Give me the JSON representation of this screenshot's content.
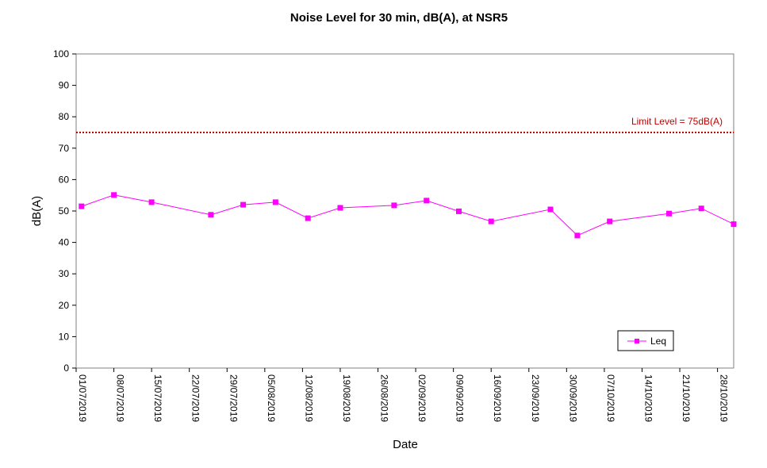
{
  "chart_data": {
    "type": "line",
    "title": "Noise Level for 30 min, dB(A), at NSR5",
    "xlabel": "Date",
    "ylabel": "dB(A)",
    "ylim": [
      0,
      100
    ],
    "yticks": [
      0,
      10,
      20,
      30,
      40,
      50,
      60,
      70,
      80,
      90,
      100
    ],
    "xlim": [
      "2019-07-01",
      "2019-10-31"
    ],
    "xtick_labels": [
      "01/07/2019",
      "08/07/2019",
      "15/07/2019",
      "22/07/2019",
      "29/07/2019",
      "05/08/2019",
      "12/08/2019",
      "19/08/2019",
      "26/08/2019",
      "02/09/2019",
      "09/09/2019",
      "16/09/2019",
      "23/09/2019",
      "30/09/2019",
      "07/10/2019",
      "14/10/2019",
      "21/10/2019",
      "28/10/2019"
    ],
    "grid": false,
    "legend_position": "bottom-right",
    "series": [
      {
        "name": "Leq",
        "color": "#ff00ff",
        "marker": "square",
        "x": [
          "2019-07-02",
          "2019-07-08",
          "2019-07-15",
          "2019-07-26",
          "2019-08-01",
          "2019-08-07",
          "2019-08-13",
          "2019-08-19",
          "2019-08-29",
          "2019-09-04",
          "2019-09-10",
          "2019-09-16",
          "2019-09-27",
          "2019-10-02",
          "2019-10-08",
          "2019-10-19",
          "2019-10-25",
          "2019-10-31"
        ],
        "y": [
          51.5,
          55.1,
          52.8,
          48.8,
          52.0,
          52.8,
          47.7,
          51.0,
          51.8,
          53.3,
          49.9,
          46.7,
          50.5,
          42.2,
          46.7,
          49.2,
          50.8,
          45.8
        ]
      }
    ],
    "reference_lines": [
      {
        "label": "Limit Level  = 75dB(A)",
        "y": 75,
        "color": "#c00000",
        "style": "dotted"
      }
    ]
  }
}
